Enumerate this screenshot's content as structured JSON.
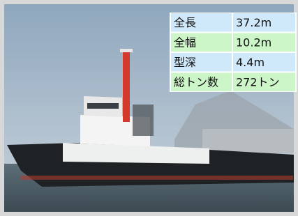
{
  "table": {
    "rows": [
      [
        "全長",
        "37.2m"
      ],
      [
        "全幅",
        "10.2m"
      ],
      [
        "型深",
        "4.4m"
      ],
      [
        "総トン数",
        "272トン"
      ]
    ]
  }
}
